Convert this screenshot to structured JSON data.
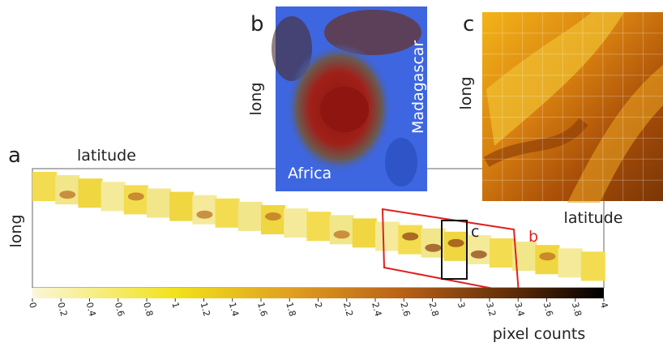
{
  "panels": {
    "a": {
      "label": "a",
      "x_label": "latitude",
      "y_label": "long",
      "box_b": "b",
      "box_c": "c"
    },
    "b": {
      "label": "b",
      "y_label": "long",
      "place_1": "Africa",
      "place_2": "Madagascar"
    },
    "c": {
      "label": "c",
      "y_label": "long",
      "x_label": "latitude"
    }
  },
  "colorbar": {
    "title": "pixel counts",
    "range": [
      0,
      4
    ],
    "ticks": [
      0,
      0.2,
      0.4,
      0.6,
      0.8,
      1,
      1.2,
      1.4,
      1.6,
      1.8,
      2,
      2.2,
      2.4,
      2.6,
      2.8,
      3,
      3.2,
      3.4,
      3.6,
      3.8,
      4
    ]
  }
}
